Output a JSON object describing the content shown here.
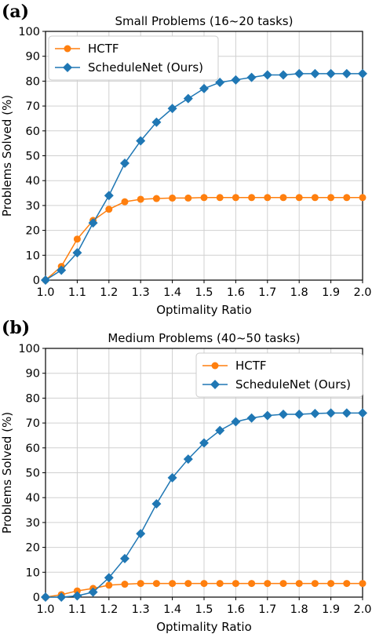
{
  "chart_data": [
    {
      "panel_label": "(a)",
      "type": "line",
      "title": "Small Problems (16~20 tasks)",
      "xlabel": "Optimality Ratio",
      "ylabel": "Problems Solved (%)",
      "xlim": [
        1.0,
        2.0
      ],
      "ylim": [
        0,
        100
      ],
      "xticks": [
        "1.0",
        "1.1",
        "1.2",
        "1.3",
        "1.4",
        "1.5",
        "1.6",
        "1.7",
        "1.8",
        "1.9",
        "2.0"
      ],
      "yticks": [
        "0",
        "10",
        "20",
        "30",
        "40",
        "50",
        "60",
        "70",
        "80",
        "90",
        "100"
      ],
      "grid": true,
      "legend_position": "top-left",
      "x": [
        1.0,
        1.05,
        1.1,
        1.15,
        1.2,
        1.25,
        1.3,
        1.35,
        1.4,
        1.45,
        1.5,
        1.55,
        1.6,
        1.65,
        1.7,
        1.75,
        1.8,
        1.85,
        1.9,
        1.95,
        2.0
      ],
      "series": [
        {
          "name": "HCTF",
          "color": "#ff7f0e",
          "marker": "circle",
          "values": [
            0,
            5.5,
            16.5,
            24,
            28.5,
            31.5,
            32.5,
            32.8,
            33,
            33,
            33.2,
            33.2,
            33.2,
            33.2,
            33.2,
            33.2,
            33.2,
            33.2,
            33.2,
            33.2,
            33.2
          ]
        },
        {
          "name": "ScheduleNet (Ours)",
          "color": "#1f77b4",
          "marker": "diamond",
          "values": [
            0,
            4,
            11,
            23,
            34,
            47,
            56,
            63.5,
            69,
            73,
            77,
            79.5,
            80.5,
            81.5,
            82.5,
            82.5,
            83,
            83,
            83,
            83,
            83
          ]
        }
      ]
    },
    {
      "panel_label": "(b)",
      "type": "line",
      "title": "Medium Problems (40~50 tasks)",
      "xlabel": "Optimality Ratio",
      "ylabel": "Problems Solved (%)",
      "xlim": [
        1.0,
        2.0
      ],
      "ylim": [
        0,
        100
      ],
      "xticks": [
        "1.0",
        "1.1",
        "1.2",
        "1.3",
        "1.4",
        "1.5",
        "1.6",
        "1.7",
        "1.8",
        "1.9",
        "2.0"
      ],
      "yticks": [
        "0",
        "10",
        "20",
        "30",
        "40",
        "50",
        "60",
        "70",
        "80",
        "90",
        "100"
      ],
      "grid": true,
      "legend_position": "top-right",
      "x": [
        1.0,
        1.05,
        1.1,
        1.15,
        1.2,
        1.25,
        1.3,
        1.35,
        1.4,
        1.45,
        1.5,
        1.55,
        1.6,
        1.65,
        1.7,
        1.75,
        1.8,
        1.85,
        1.9,
        1.95,
        2.0
      ],
      "series": [
        {
          "name": "HCTF",
          "color": "#ff7f0e",
          "marker": "circle",
          "values": [
            0,
            1,
            2.5,
            3.5,
            4.8,
            5.2,
            5.5,
            5.5,
            5.5,
            5.5,
            5.5,
            5.5,
            5.5,
            5.5,
            5.5,
            5.5,
            5.5,
            5.5,
            5.5,
            5.5,
            5.5
          ]
        },
        {
          "name": "ScheduleNet (Ours)",
          "color": "#1f77b4",
          "marker": "diamond",
          "values": [
            0,
            0,
            0.5,
            2,
            7.8,
            15.5,
            25.5,
            37.5,
            48,
            55.5,
            62,
            67,
            70.5,
            72,
            73,
            73.5,
            73.5,
            73.8,
            74,
            74,
            74
          ]
        }
      ]
    }
  ]
}
